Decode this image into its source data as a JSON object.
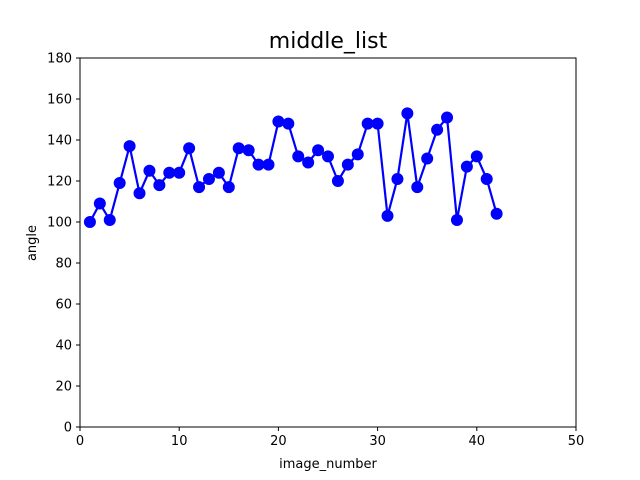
{
  "chart_data": {
    "type": "line",
    "title": "middle_list",
    "xlabel": "image_number",
    "ylabel": "angle",
    "xlim": [
      0,
      50
    ],
    "ylim": [
      0,
      180
    ],
    "xticks": [
      0,
      10,
      20,
      30,
      40,
      50
    ],
    "yticks": [
      0,
      20,
      40,
      60,
      80,
      100,
      120,
      140,
      160,
      180
    ],
    "grid": false,
    "series": [
      {
        "color": "#0000ff",
        "marker": "circle",
        "x": [
          1,
          2,
          3,
          4,
          5,
          6,
          7,
          8,
          9,
          10,
          11,
          12,
          13,
          14,
          15,
          16,
          17,
          18,
          19,
          20,
          21,
          22,
          23,
          24,
          25,
          26,
          27,
          28,
          29,
          30,
          31,
          32,
          33,
          34,
          35,
          36,
          37,
          38,
          39,
          40,
          41,
          42
        ],
        "y": [
          100,
          109,
          101,
          119,
          137,
          114,
          125,
          118,
          124,
          124,
          136,
          117,
          121,
          124,
          117,
          136,
          135,
          128,
          128,
          149,
          148,
          132,
          129,
          135,
          132,
          120,
          128,
          133,
          148,
          148,
          103,
          121,
          153,
          117,
          131,
          145,
          151,
          101,
          127,
          132,
          121,
          104
        ]
      }
    ]
  }
}
